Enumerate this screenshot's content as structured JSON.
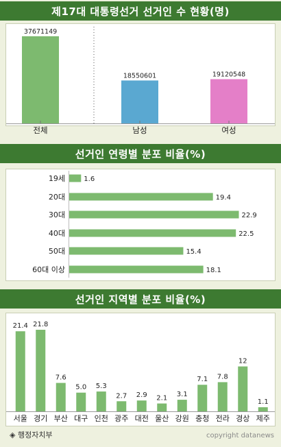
{
  "colors": {
    "banner": "#3d7a31",
    "bar_green": "#7dba6f",
    "bar_blue": "#5aa8d1",
    "bar_pink": "#e47fc8",
    "background": "#eef1df"
  },
  "chart_data": [
    {
      "type": "bar",
      "title": "제17대 대통령선거 선거인 수 현황(명)",
      "categories": [
        "전체",
        "남성",
        "여성"
      ],
      "values": [
        37671149,
        18550601,
        19120548
      ],
      "bar_colors": [
        "#7dba6f",
        "#5aa8d1",
        "#e47fc8"
      ],
      "xlabel": "",
      "ylabel": "",
      "ylim": [
        0,
        40000000
      ],
      "grid": false,
      "separator_after_first": true
    },
    {
      "type": "bar",
      "orientation": "horizontal",
      "title": "선거인 연령별 분포 비율(%)",
      "categories": [
        "19세",
        "20대",
        "30대",
        "40대",
        "50대",
        "60대 이상"
      ],
      "values": [
        1.6,
        19.4,
        22.9,
        22.5,
        15.4,
        18.1
      ],
      "xlabel": "",
      "ylabel": "",
      "xlim": [
        0,
        23.5
      ],
      "grid": false
    },
    {
      "type": "bar",
      "title": "선거인 지역별 분포 비율(%)",
      "categories": [
        "서울",
        "경기",
        "부산",
        "대구",
        "인천",
        "광주",
        "대전",
        "울산",
        "강원",
        "충청",
        "전라",
        "경상",
        "제주"
      ],
      "values": [
        21.4,
        21.8,
        7.6,
        5.0,
        5.3,
        2.7,
        2.9,
        2.1,
        3.1,
        7.1,
        7.8,
        12,
        1.1
      ],
      "labels": [
        "21.4",
        "21.8",
        "7.6",
        "5.0",
        "5.3",
        "2.7",
        "2.9",
        "2.1",
        "3.1",
        "7.1",
        "7.8",
        "12",
        "1.1"
      ],
      "xlabel": "",
      "ylabel": "",
      "ylim": [
        0,
        24
      ],
      "grid": false
    }
  ],
  "footer": {
    "source": "◈ 행정자치부",
    "copyright": "copyright datanews"
  }
}
